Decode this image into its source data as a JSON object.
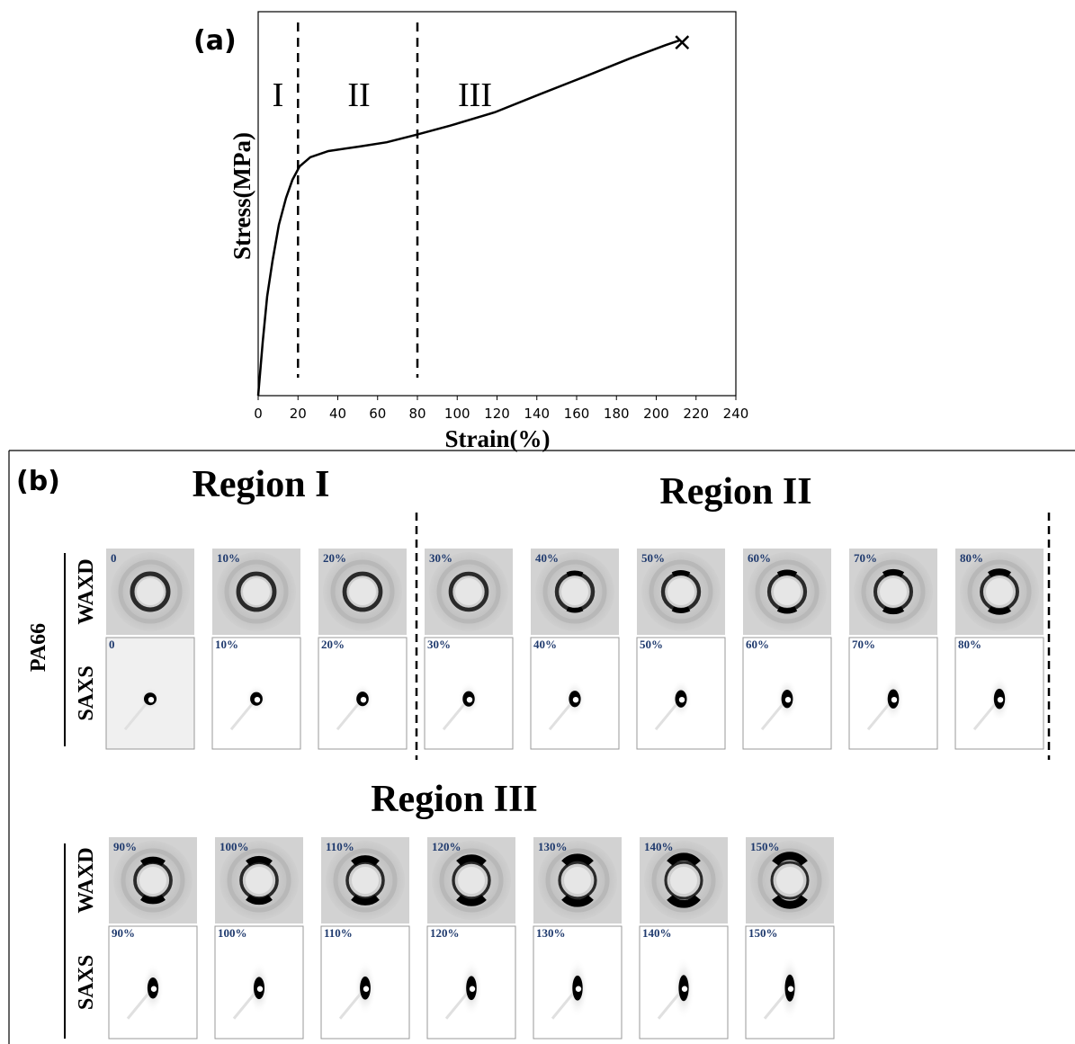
{
  "chart_data": {
    "type": "line",
    "panel_label": "(a)",
    "x_label": "Strain(%)",
    "y_label": "Stress(MPa)",
    "x": [
      0,
      2.3,
      4.5,
      7.2,
      10.4,
      14.0,
      17.2,
      20.8,
      26.2,
      35.3,
      51.1,
      64.6,
      79.1,
      96.3,
      118.9,
      141.5,
      164.1,
      186.7,
      204.7,
      211.5
    ],
    "values": [
      0,
      14.1,
      25.8,
      35.1,
      44.5,
      51.5,
      56.2,
      59.7,
      62.1,
      63.7,
      64.9,
      66.0,
      67.9,
      70.3,
      73.8,
      78.5,
      83.1,
      87.8,
      91.3,
      92.5
    ],
    "color": "#000000",
    "end_marker": {
      "x": 213,
      "y": 92
    },
    "dividers": [
      20,
      80
    ],
    "regions": [
      "I",
      "II",
      "III"
    ],
    "xlim": [
      0,
      240
    ],
    "xticks": [
      0,
      20,
      40,
      60,
      80,
      100,
      120,
      140,
      160,
      180,
      200,
      220,
      240
    ],
    "ylim": [
      0,
      100
    ]
  },
  "panel_b": {
    "label": "(b)",
    "regions": [
      "Region I",
      "Region II",
      "Region III"
    ],
    "sample": "PA66",
    "rows": [
      {
        "waxd_label": "WAXD",
        "saxs_label": "SAXS",
        "strains": [
          "0",
          "10%",
          "20%",
          "30%",
          "40%",
          "50%",
          "60%",
          "70%",
          "80%"
        ]
      },
      {
        "waxd_label": "WAXD",
        "saxs_label": "SAXS",
        "strains": [
          "90%",
          "100%",
          "110%",
          "120%",
          "130%",
          "140%",
          "150%"
        ]
      }
    ]
  }
}
